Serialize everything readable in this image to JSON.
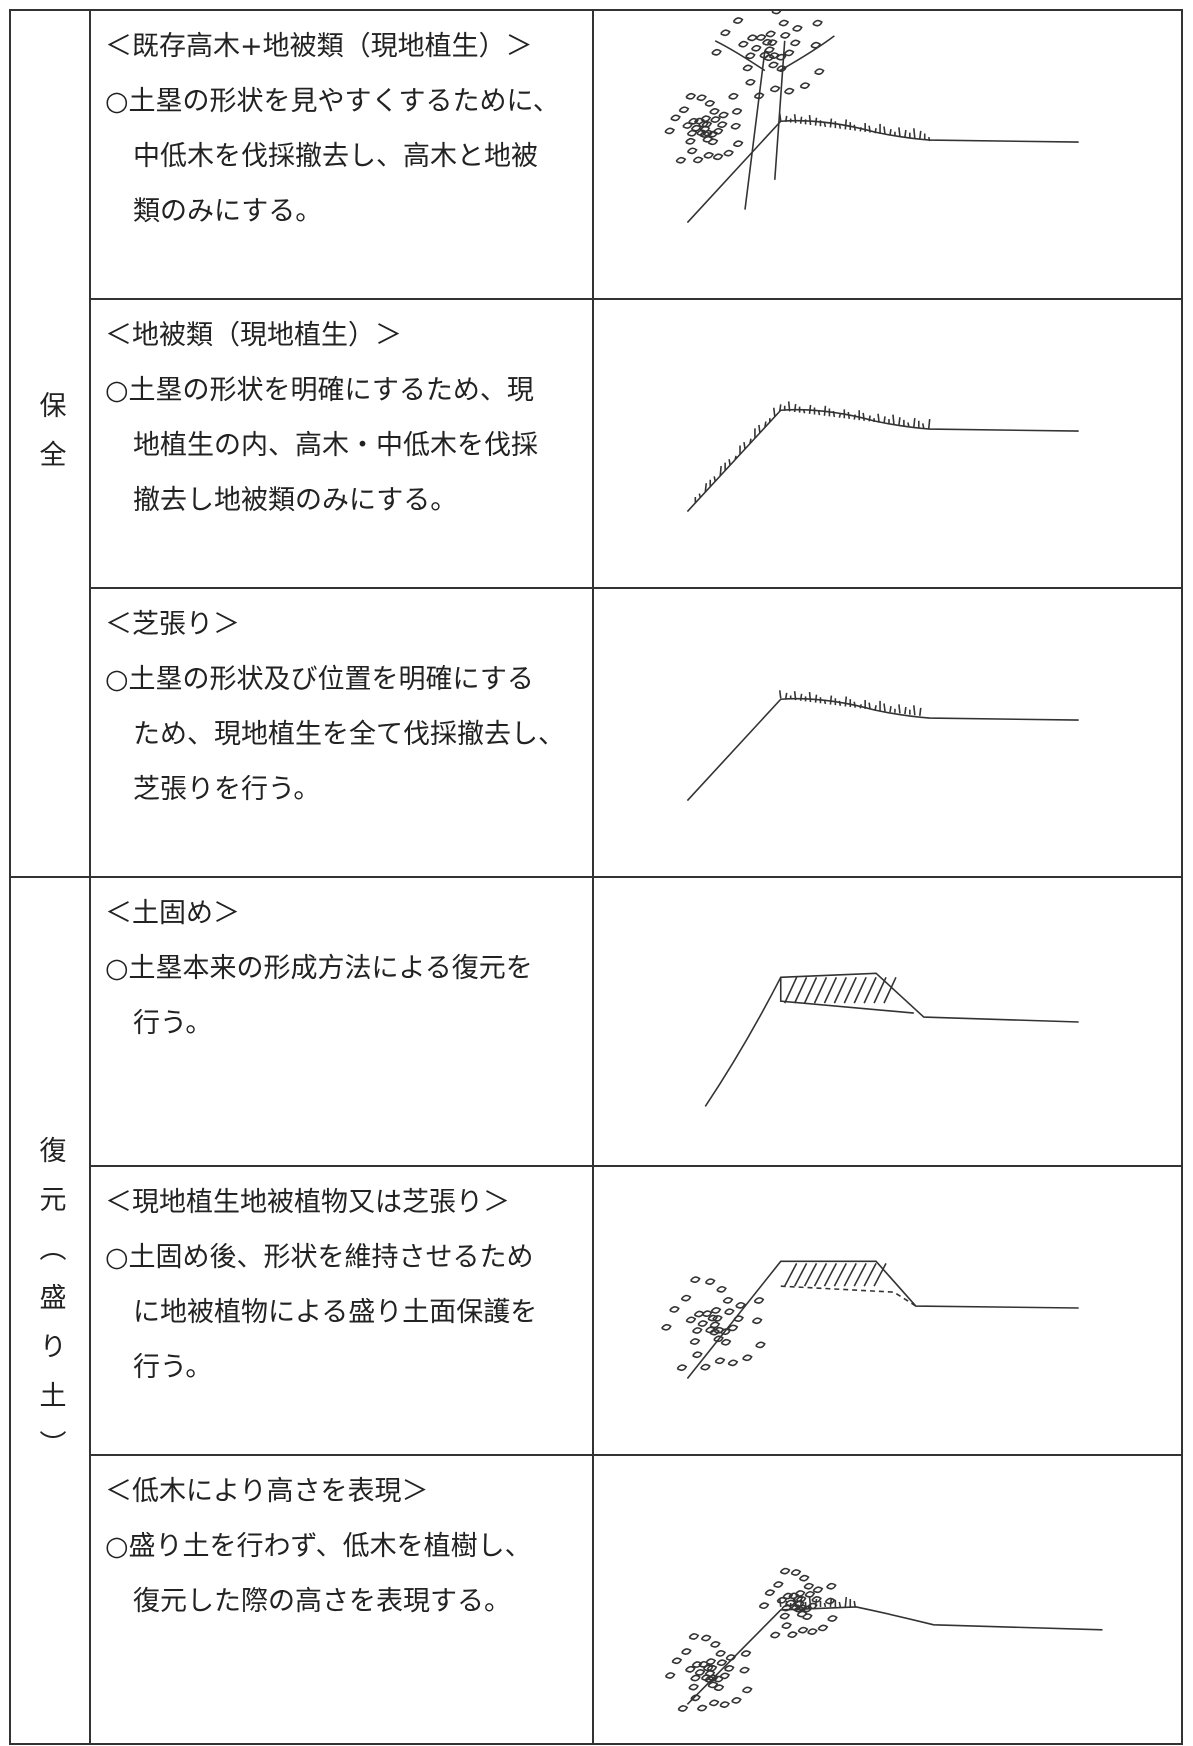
{
  "groups": [
    {
      "label": "保全",
      "rows": [
        {
          "heading": "＜既存高木+地被類（現地植生）＞",
          "body": [
            "○土塁の形状を見やすくするために、",
            "中低木を伐採撤去し、高木と地被",
            "類のみにする。"
          ]
        },
        {
          "heading": "＜地被類（現地植生）＞",
          "body": [
            "○土塁の形状を明確にするため、現",
            "地植生の内、高木・中低木を伐採",
            "撤去し地被類のみにする。"
          ]
        },
        {
          "heading": "＜芝張り＞",
          "body": [
            "○土塁の形状及び位置を明確にする",
            "ため、現地植生を全て伐採撤去し、",
            "芝張りを行う。"
          ]
        }
      ]
    },
    {
      "label": "復元（盛り土）",
      "rows": [
        {
          "heading": "＜土固め＞",
          "body": [
            "○土塁本来の形成方法による復元を",
            "行う。"
          ]
        },
        {
          "heading": "＜現地植生地被植物又は芝張り＞",
          "body": [
            "○土固め後、形状を維持させるため",
            "に地被植物による盛り土面保護を",
            "行う。"
          ]
        },
        {
          "heading": "＜低木により高さを表現＞",
          "body": [
            "○盛り土を行わず、低木を植樹し、",
            "復元した際の高さを表現する。"
          ]
        }
      ]
    }
  ]
}
